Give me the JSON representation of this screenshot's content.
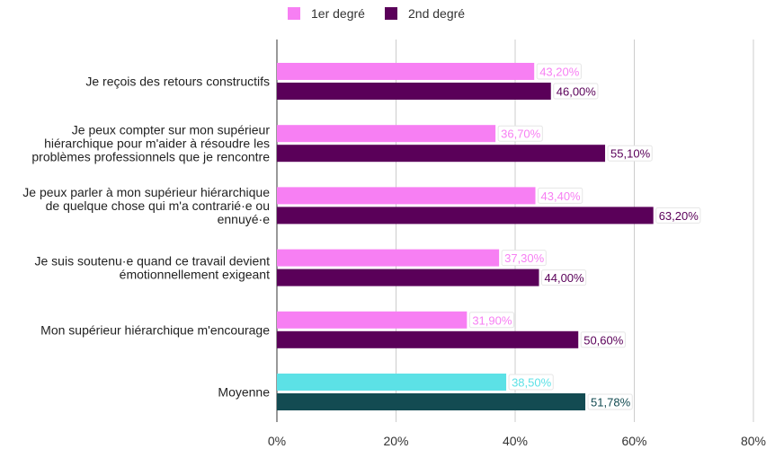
{
  "chart_data": {
    "type": "bar",
    "orientation": "horizontal",
    "categories": [
      "Je reçois des retours constructifs",
      "Je peux compter sur mon supérieur hiérarchique pour m'aider à résoudre les problèmes professionnels que je rencontre",
      "Je peux parler à mon supérieur hiérarchique de quelque chose qui m'a contrarié·e ou ennuyé·e",
      "Je suis soutenu·e quand ce travail devient émotionnellement exigeant",
      "Mon supérieur hiérarchique m'encourage",
      "Moyenne"
    ],
    "category_lines": [
      [
        "Je reçois des retours constructifs"
      ],
      [
        "Je peux compter sur mon supérieur",
        "hiérarchique pour m'aider à résoudre les",
        "problèmes professionnels que je rencontre"
      ],
      [
        "Je peux parler à mon supérieur hiérarchique",
        "de quelque chose qui m'a contrarié·e ou",
        "ennuyé·e"
      ],
      [
        "Je suis soutenu·e quand ce travail devient",
        "émotionnellement exigeant"
      ],
      [
        "Mon supérieur hiérarchique m'encourage"
      ],
      [
        "Moyenne"
      ]
    ],
    "series": [
      {
        "name": "1er degré",
        "values": [
          43.2,
          36.7,
          43.4,
          37.3,
          31.9,
          38.5
        ],
        "labels": [
          "43,20%",
          "36,70%",
          "43,40%",
          "37,30%",
          "31,90%",
          "38,50%"
        ],
        "color": "#f77ff3",
        "highlight_color": "#5ce1e6",
        "label_color": "#f77ff3",
        "highlight_label_color": "#5ce1e6"
      },
      {
        "name": "2nd degré",
        "values": [
          46.0,
          55.1,
          63.2,
          44.0,
          50.6,
          51.78
        ],
        "labels": [
          "46,00%",
          "55,10%",
          "63,20%",
          "44,00%",
          "50,60%",
          "51,78%"
        ],
        "color": "#5a0059",
        "highlight_color": "#134b52",
        "label_color": "#5a0059",
        "highlight_label_color": "#134b52"
      }
    ],
    "highlight_category_index": 5,
    "xlim": [
      0,
      80
    ],
    "xticks": [
      0,
      20,
      40,
      60,
      80
    ],
    "xtick_labels": [
      "0%",
      "20%",
      "40%",
      "60%",
      "80%"
    ],
    "grid": true,
    "legend_position": "top-center",
    "title": "",
    "xlabel": "",
    "ylabel": ""
  }
}
